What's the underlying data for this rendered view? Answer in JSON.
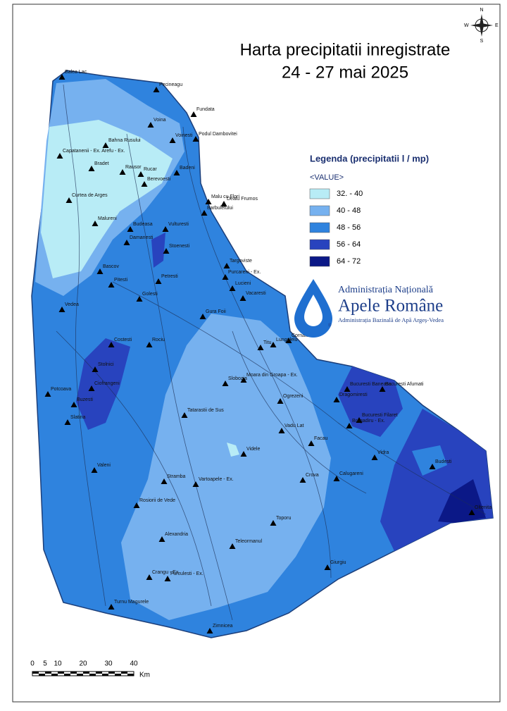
{
  "title": {
    "line1": "Harta precipitatii inregistrate",
    "line2": "24 - 27 mai 2025"
  },
  "compass": {
    "n": "N",
    "e": "E",
    "s": "S",
    "w": "W"
  },
  "legend": {
    "title": "Legenda (precipitatii l / mp)",
    "header": "<VALUE>",
    "items": [
      {
        "label": "32. - 40",
        "color": "#b8ecf6"
      },
      {
        "label": "40 - 48",
        "color": "#76b1ef"
      },
      {
        "label": "48 - 56",
        "color": "#2f83de"
      },
      {
        "label": "56 - 64",
        "color": "#2843be"
      },
      {
        "label": "64 - 72",
        "color": "#0b1887"
      }
    ]
  },
  "logo": {
    "line1": "Administrația Națională",
    "line2": "Apele Române",
    "line3": "Administrația Bazinală de Apă Argeș-Vedea",
    "mark": "®"
  },
  "scale": {
    "labels": [
      "0",
      "5",
      "10",
      "20",
      "30",
      "40"
    ],
    "unit": "Km"
  },
  "stations": [
    "Balea Lac",
    "Pecineagu",
    "Fundata",
    "Voina",
    "Podul Dambovitei",
    "Capatanenii - Ex. Arefu - Ex.",
    "Bahna Rusului",
    "Bradet",
    "Voinesti",
    "Rausor",
    "Rucar",
    "Berevoesti",
    "Badeni",
    "Curtea de Arges",
    "Dealu Frumos",
    "Malu cu Flori",
    "Barbuletului",
    "Malureni",
    "Budeasa",
    "Vulturesti",
    "Damanesti",
    "Stoenesti",
    "Targoviste",
    "Bascov",
    "Purcareni - Ex.",
    "Lucieni",
    "Vacaresti",
    "Pitesti",
    "Petresti",
    "Golesti",
    "Vedea",
    "Gura Foii",
    "Cornatu",
    "Lungulelu",
    "Titu",
    "Slobozia",
    "Moara din Groapa - Ex.",
    "Costesti",
    "Rociu",
    "Stolnici",
    "Ciofrangeni",
    "Potcoava",
    "Buzesti",
    "Slatina",
    "Tatarastii de Sus",
    "Videle",
    "Bucuresti Baneasa",
    "Bucuresti Afumati",
    "Dragomiresti",
    "Bucuresti Filaret",
    "Bragadiru - Ex.",
    "Ogrezeni",
    "Vadu Lat",
    "Facau",
    "Vidra",
    "Budesti",
    "Oltenita",
    "Calugareni",
    "Crova",
    "Toporu",
    "Giurgiu",
    "Zimnicea",
    "Turnu Magurele",
    "Crangu - Ex.",
    "Furculesti - Ex.",
    "Alexandria",
    "Teleormanul",
    "Rosiorii de Vede",
    "Stramba",
    "Vartoapele - Ex.",
    "Valeni"
  ]
}
